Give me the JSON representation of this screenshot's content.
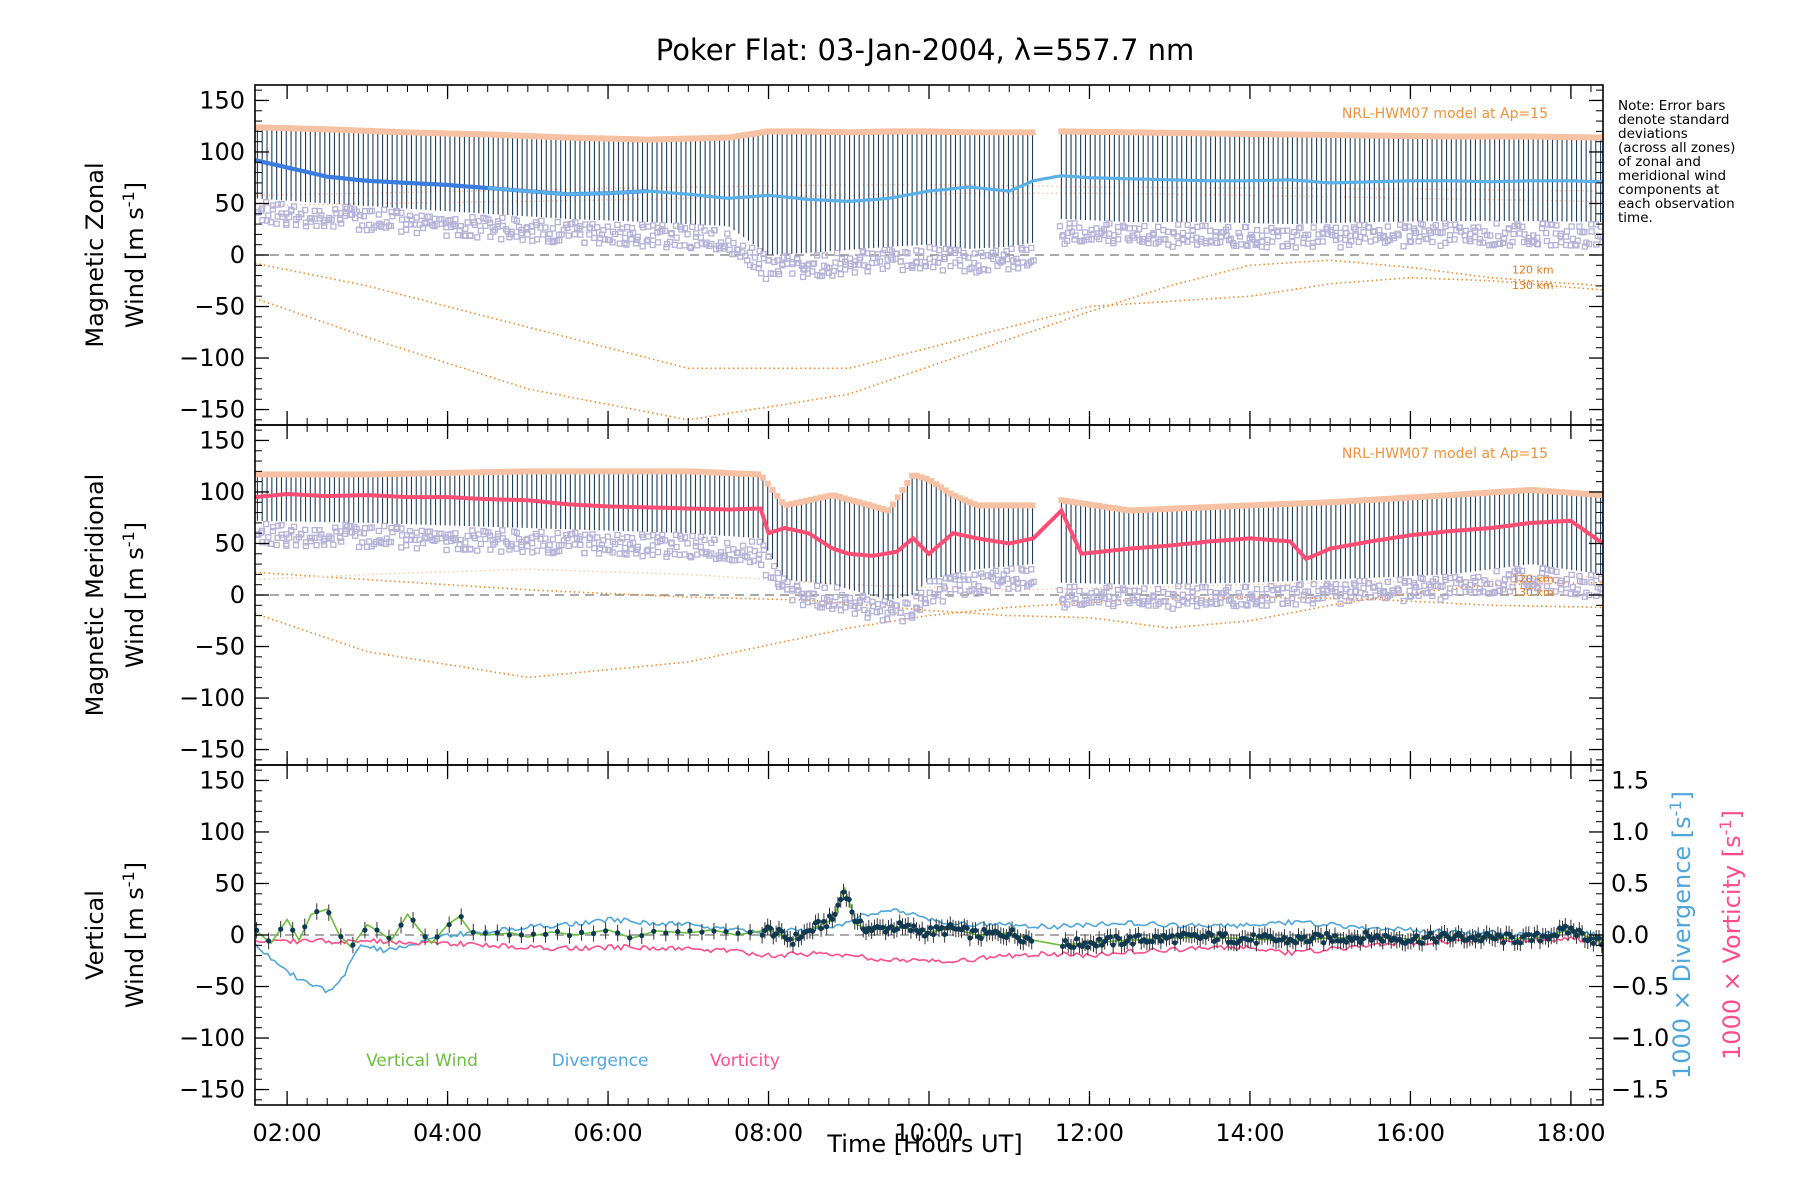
{
  "title": "Poker Flat: 03-Jan-2004, λ=557.7 nm",
  "note_lines": [
    "Note: Error bars",
    "denote standard",
    "deviations",
    "(across all zones)",
    "of zonal and",
    "meridional wind",
    "components at",
    "each observation",
    "time."
  ],
  "colors": {
    "zonal_mean": "#3a7de0",
    "zonal_mean_light": "#5ab0e8",
    "meridional_mean": "#ff4d73",
    "error_bar": "#1f3c5c",
    "zone_marker": "#b6b2d8",
    "model": "#f28a2e",
    "model_band": "#f7c9a8",
    "vertical": "#6cbf3c",
    "vertical_dot": "#0d3a52",
    "divergence": "#4fa6dc",
    "vorticity": "#ff4d8a",
    "zero_line": "#777777"
  },
  "chart_data": [
    {
      "type": "line",
      "panel": "zonal",
      "ylabel_line1": "Magnetic Zonal",
      "ylabel_line2_prefix": "Wind [m s",
      "ylabel_sup": "-1",
      "ylabel_suffix": "]",
      "ylim": [
        -165,
        165
      ],
      "yticks": [
        150,
        100,
        50,
        0,
        -50,
        -100,
        -150
      ],
      "xlim": [
        1.6,
        18.4
      ],
      "model_label": "NRL-HWM07 model at Ap=15",
      "altitude_labels": [
        "120 km",
        "130 km"
      ],
      "gap": [
        11.3,
        11.65
      ],
      "series": [
        {
          "name": "mean",
          "x": [
            1.6,
            2.0,
            2.5,
            3.0,
            3.5,
            4.0,
            4.5,
            5.0,
            5.5,
            6.0,
            6.5,
            7.0,
            7.5,
            8.0,
            8.5,
            9.0,
            9.5,
            10.0,
            10.5,
            11.0,
            11.3,
            11.65,
            12.0,
            12.5,
            13.0,
            13.5,
            14.0,
            14.5,
            15.0,
            15.5,
            16.0,
            16.5,
            17.0,
            17.5,
            18.0,
            18.4
          ],
          "y": [
            92,
            85,
            76,
            72,
            70,
            68,
            65,
            62,
            59,
            60,
            62,
            59,
            55,
            58,
            54,
            52,
            55,
            62,
            66,
            62,
            72,
            77,
            75,
            74,
            73,
            72,
            72,
            73,
            70,
            71,
            72,
            72,
            71,
            72,
            72,
            71
          ]
        },
        {
          "name": "upper_error",
          "x": [
            1.6,
            2.5,
            3.5,
            4.5,
            5.5,
            6.5,
            7.5,
            8.0,
            8.5,
            9.0,
            9.5,
            10.0,
            10.5,
            11.0,
            11.3,
            11.65,
            12.5,
            13.5,
            14.5,
            15.5,
            16.5,
            17.5,
            18.4
          ],
          "y": [
            122,
            120,
            117,
            115,
            112,
            110,
            112,
            118,
            118,
            117,
            118,
            118,
            117,
            117,
            117,
            118,
            117,
            116,
            115,
            114,
            113,
            113,
            112
          ]
        },
        {
          "name": "lower_error",
          "x": [
            1.6,
            2.5,
            3.5,
            4.5,
            5.5,
            6.5,
            7.5,
            8.0,
            8.5,
            9.0,
            9.5,
            10.0,
            10.5,
            11.0,
            11.3,
            11.65,
            12.5,
            13.5,
            14.5,
            15.5,
            16.5,
            17.5,
            18.4
          ],
          "y": [
            55,
            50,
            45,
            40,
            35,
            32,
            28,
            0,
            2,
            5,
            8,
            10,
            6,
            8,
            12,
            35,
            32,
            32,
            30,
            32,
            33,
            33,
            32
          ]
        },
        {
          "name": "model_120km",
          "x": [
            1.6,
            3.0,
            5.0,
            7.0,
            9.0,
            10.5,
            12.0,
            13.0,
            14.0,
            15.0,
            16.0,
            17.0,
            18.4
          ],
          "y": [
            -42,
            -80,
            -130,
            -160,
            -135,
            -95,
            -55,
            -30,
            -10,
            -5,
            -12,
            -22,
            -30
          ]
        },
        {
          "name": "model_130km",
          "x": [
            1.6,
            3.0,
            5.0,
            7.0,
            9.0,
            10.5,
            12.0,
            13.0,
            14.0,
            15.0,
            16.0,
            17.0,
            18.4
          ],
          "y": [
            -8,
            -30,
            -70,
            -110,
            -110,
            -80,
            -50,
            -45,
            -40,
            -28,
            -22,
            -25,
            -34
          ]
        },
        {
          "name": "model_a",
          "x": [
            1.6,
            3.0,
            5.0,
            7.0,
            9.0,
            10.5,
            12.0,
            14.0,
            16.0,
            18.4
          ],
          "y": [
            58,
            60,
            63,
            66,
            68,
            68,
            66,
            65,
            64,
            62
          ]
        },
        {
          "name": "model_b",
          "x": [
            1.6,
            3.0,
            5.0,
            7.0,
            9.0,
            10.5,
            12.0,
            14.0,
            16.0,
            18.4
          ],
          "y": [
            48,
            50,
            52,
            55,
            58,
            60,
            60,
            58,
            55,
            52
          ]
        }
      ]
    },
    {
      "type": "line",
      "panel": "meridional",
      "ylabel_line1": "Magnetic Meridional",
      "ylabel_line2_prefix": "Wind [m s",
      "ylabel_sup": "-1",
      "ylabel_suffix": "]",
      "ylim": [
        -165,
        165
      ],
      "yticks": [
        150,
        100,
        50,
        0,
        -50,
        -100,
        -150
      ],
      "xlim": [
        1.6,
        18.4
      ],
      "model_label": "NRL-HWM07 model at Ap=15",
      "altitude_labels": [
        "120 km",
        "130 km"
      ],
      "gap": [
        11.3,
        11.65
      ],
      "series": [
        {
          "name": "mean",
          "x": [
            1.6,
            2.0,
            2.5,
            3.0,
            3.5,
            4.0,
            4.5,
            5.0,
            5.5,
            6.0,
            6.5,
            7.0,
            7.5,
            7.9,
            8.0,
            8.2,
            8.5,
            8.8,
            9.0,
            9.3,
            9.6,
            9.8,
            10.0,
            10.3,
            10.6,
            11.0,
            11.3,
            11.65,
            11.9,
            12.5,
            13.0,
            13.5,
            14.0,
            14.5,
            14.7,
            15.0,
            15.5,
            16.0,
            16.5,
            17.0,
            17.5,
            18.0,
            18.4
          ],
          "y": [
            95,
            98,
            96,
            97,
            95,
            95,
            93,
            92,
            88,
            86,
            85,
            84,
            83,
            84,
            60,
            65,
            60,
            45,
            40,
            38,
            42,
            55,
            40,
            60,
            55,
            50,
            55,
            82,
            40,
            45,
            48,
            52,
            55,
            52,
            35,
            45,
            52,
            58,
            62,
            65,
            70,
            72,
            50
          ]
        },
        {
          "name": "upper_error",
          "x": [
            1.6,
            3.0,
            5.0,
            7.0,
            7.9,
            8.2,
            8.8,
            9.5,
            9.8,
            10.0,
            10.3,
            10.6,
            11.3,
            11.65,
            12.5,
            14.0,
            15.0,
            16.5,
            17.5,
            18.4
          ],
          "y": [
            115,
            115,
            118,
            118,
            115,
            85,
            95,
            80,
            115,
            110,
            95,
            85,
            85,
            90,
            80,
            85,
            88,
            95,
            100,
            95
          ]
        },
        {
          "name": "lower_error",
          "x": [
            1.6,
            3.0,
            5.0,
            7.0,
            7.9,
            8.2,
            8.8,
            9.5,
            9.8,
            10.0,
            10.3,
            10.6,
            11.3,
            11.65,
            12.5,
            14.0,
            15.0,
            16.5,
            17.5,
            18.4
          ],
          "y": [
            72,
            70,
            65,
            60,
            55,
            15,
            10,
            -5,
            0,
            15,
            20,
            25,
            30,
            12,
            10,
            12,
            15,
            20,
            30,
            20
          ]
        },
        {
          "name": "model_120km",
          "x": [
            1.6,
            3.0,
            5.0,
            7.0,
            9.0,
            10.0,
            11.0,
            12.5,
            14.0,
            15.5,
            17.0,
            18.4
          ],
          "y": [
            -18,
            -55,
            -80,
            -65,
            -32,
            -20,
            -12,
            -5,
            -2,
            -4,
            -10,
            -12
          ]
        },
        {
          "name": "model_130km",
          "x": [
            1.6,
            3.0,
            5.0,
            7.0,
            8.5,
            10.0,
            11.0,
            12.0,
            13.0,
            14.0,
            15.0,
            16.0,
            17.0,
            18.4
          ],
          "y": [
            22,
            15,
            5,
            -2,
            -5,
            -15,
            -20,
            -22,
            -32,
            -25,
            -10,
            2,
            10,
            12
          ]
        },
        {
          "name": "model_c",
          "x": [
            1.6,
            3.0,
            5.0,
            7.0,
            9.0,
            11.0,
            13.0,
            15.0,
            17.0,
            18.4
          ],
          "y": [
            15,
            20,
            25,
            20,
            10,
            5,
            8,
            12,
            15,
            18
          ]
        }
      ]
    },
    {
      "type": "line",
      "panel": "vertical",
      "ylabel_line1": "Vertical",
      "ylabel_line2_prefix": "Wind [m s",
      "ylabel_sup": "-1",
      "ylabel_suffix": "]",
      "ylim": [
        -165,
        165
      ],
      "yticks": [
        150,
        100,
        50,
        0,
        -50,
        -100,
        -150
      ],
      "xlim": [
        1.6,
        18.4
      ],
      "right_axis_label_div": "1000 × Divergence [s",
      "right_axis_label_vort": "1000 × Vorticity [s",
      "right_axis_sup": "-1",
      "right_axis_suffix": "]",
      "right_ylim": [
        -1.65,
        1.65
      ],
      "right_yticks": [
        "1.5",
        "1.0",
        "0.5",
        "0.0",
        "−0.5",
        "−1.0",
        "−1.5"
      ],
      "right_ytick_values": [
        1.5,
        1.0,
        0.5,
        0.0,
        -0.5,
        -1.0,
        -1.5
      ],
      "legend": [
        "Vertical Wind",
        "Divergence",
        "Vorticity"
      ],
      "series": [
        {
          "name": "Vertical Wind",
          "x": [
            1.6,
            1.8,
            2.0,
            2.15,
            2.3,
            2.5,
            2.65,
            2.8,
            3.0,
            3.15,
            3.3,
            3.5,
            3.65,
            3.8,
            4.0,
            4.15,
            4.3,
            4.5,
            4.8,
            5.0,
            5.3,
            5.6,
            6.0,
            6.3,
            6.6,
            7.0,
            7.3,
            7.6,
            8.0,
            8.3,
            8.6,
            8.8,
            8.95,
            9.1,
            9.3,
            9.6,
            10.0,
            10.3,
            10.6,
            11.0,
            11.3,
            11.65,
            11.9,
            12.5,
            13.0,
            13.5,
            14.0,
            14.5,
            15.0,
            15.5,
            16.0,
            16.5,
            17.0,
            17.5,
            18.0,
            18.4
          ],
          "y": [
            5,
            -8,
            15,
            -5,
            20,
            25,
            0,
            -12,
            10,
            3,
            -5,
            20,
            5,
            -8,
            10,
            18,
            2,
            0,
            2,
            -2,
            3,
            0,
            5,
            -3,
            4,
            2,
            5,
            0,
            5,
            -5,
            8,
            15,
            45,
            10,
            5,
            8,
            3,
            6,
            0,
            2,
            -5,
            -10,
            -8,
            -5,
            -3,
            -2,
            -4,
            -5,
            -3,
            -2,
            -4,
            -2,
            -3,
            -4,
            5,
            -8
          ]
        },
        {
          "name": "Divergence",
          "x": [
            1.6,
            1.9,
            2.2,
            2.5,
            2.7,
            2.9,
            3.2,
            3.5,
            4.0,
            4.5,
            5.0,
            5.5,
            6.0,
            6.5,
            7.0,
            7.5,
            8.0,
            8.5,
            8.8,
            9.0,
            9.2,
            9.5,
            9.8,
            10.0,
            10.3,
            10.6,
            11.0,
            11.5,
            12.0,
            12.5,
            13.0,
            13.5,
            14.0,
            14.5,
            15.0,
            15.5,
            16.0,
            16.5,
            17.0,
            17.5,
            18.0,
            18.4
          ],
          "y": [
            -0.08,
            -0.3,
            -0.45,
            -0.55,
            -0.4,
            -0.1,
            -0.15,
            -0.1,
            0.0,
            0.03,
            0.08,
            0.1,
            0.15,
            0.12,
            0.1,
            0.05,
            0.03,
            0.05,
            0.08,
            0.12,
            0.2,
            0.25,
            0.2,
            0.15,
            0.12,
            0.1,
            0.1,
            0.08,
            0.1,
            0.12,
            0.1,
            0.08,
            0.1,
            0.12,
            0.1,
            0.06,
            0.05,
            0.03,
            0.02,
            0.0,
            0.05,
            -0.02
          ]
        },
        {
          "name": "Vorticity",
          "x": [
            1.6,
            2.0,
            2.5,
            3.0,
            3.5,
            4.0,
            4.5,
            5.0,
            5.5,
            6.0,
            6.5,
            7.0,
            7.5,
            8.0,
            8.5,
            9.0,
            9.5,
            10.0,
            10.5,
            11.0,
            11.5,
            12.0,
            12.5,
            13.0,
            13.5,
            14.0,
            14.5,
            15.0,
            15.5,
            16.0,
            16.5,
            17.0,
            17.5,
            18.0,
            18.4
          ],
          "y": [
            -0.05,
            -0.06,
            -0.06,
            -0.06,
            -0.07,
            -0.08,
            -0.1,
            -0.12,
            -0.13,
            -0.12,
            -0.12,
            -0.14,
            -0.15,
            -0.2,
            -0.18,
            -0.2,
            -0.24,
            -0.25,
            -0.24,
            -0.2,
            -0.18,
            -0.2,
            -0.16,
            -0.14,
            -0.13,
            -0.12,
            -0.18,
            -0.14,
            -0.1,
            -0.08,
            -0.06,
            -0.04,
            -0.05,
            -0.04,
            -0.06
          ]
        }
      ]
    }
  ],
  "x_axis": {
    "label": "Time [Hours UT]",
    "ticks": [
      2,
      4,
      6,
      8,
      10,
      12,
      14,
      16,
      18
    ],
    "tick_labels": [
      "02:00",
      "04:00",
      "06:00",
      "08:00",
      "10:00",
      "12:00",
      "14:00",
      "16:00",
      "18:00"
    ]
  }
}
